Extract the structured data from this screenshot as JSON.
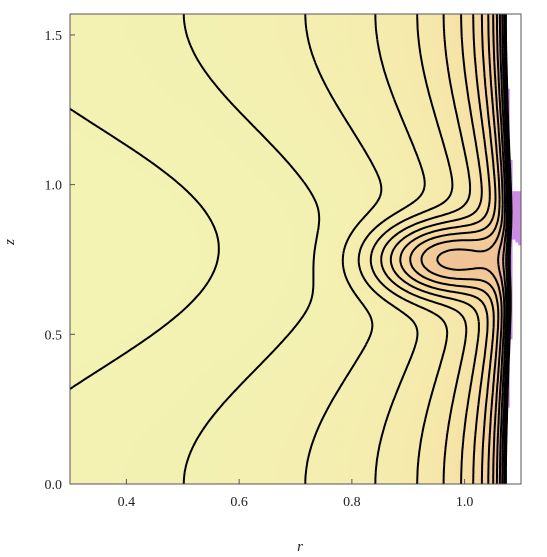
{
  "chart_data": {
    "type": "contour",
    "xlabel": "r",
    "ylabel": "z",
    "xlim": [
      0.3,
      1.1
    ],
    "ylim": [
      0.0,
      1.57
    ],
    "x_ticks": [
      "0.4",
      "0.6",
      "0.8",
      "1.0"
    ],
    "y_ticks": [
      "0.0",
      "0.5",
      "1.0",
      "1.5"
    ],
    "x_tick_values": [
      0.4,
      0.6,
      0.8,
      1.0
    ],
    "y_tick_values": [
      0.0,
      0.5,
      1.0,
      1.5
    ],
    "colormap": [
      "#f3f3b3",
      "#f7dfa4",
      "#f0c496",
      "#e0a6b8",
      "#c98be6",
      "#ffffff"
    ],
    "contour_levels": 16,
    "features": {
      "central_peak": {
        "r": 0.97,
        "z": 0.75
      },
      "saddle_lobes_z": [
        0.25,
        1.25
      ]
    }
  }
}
